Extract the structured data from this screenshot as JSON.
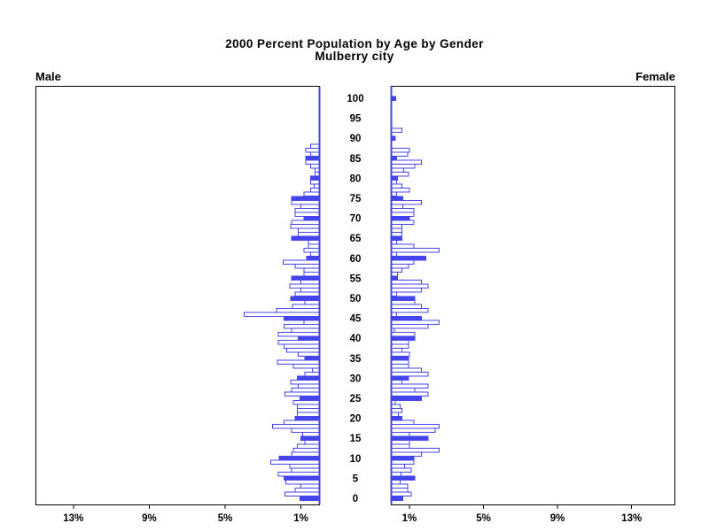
{
  "title": {
    "line1": "2000 Percent Population by Age by Gender",
    "line2": "Mulberry city"
  },
  "chart_data": {
    "type": "bar",
    "subtype": "population-pyramid",
    "title": "2000 Percent Population by Age by Gender",
    "subtitle": "Mulberry city",
    "left_series_label": "Male",
    "right_series_label": "Female",
    "age_axis": {
      "min": 0,
      "max": 100,
      "tick_step": 5,
      "tick_labels": [
        "0",
        "5",
        "10",
        "15",
        "20",
        "25",
        "30",
        "35",
        "40",
        "45",
        "50",
        "55",
        "60",
        "65",
        "70",
        "75",
        "80",
        "85",
        "90",
        "95",
        "100"
      ]
    },
    "pct_axis": {
      "tick_values": [
        1,
        5,
        9,
        13
      ],
      "male_tick_labels": [
        "13%",
        "9%",
        "5%",
        "1%"
      ],
      "female_tick_labels": [
        "1%",
        "5%",
        "9%",
        "13%"
      ]
    },
    "filled_bar_rule": "bars for ages that are multiples of 5 are solid filled; all other single-year bars are white with blue outline",
    "bar_color": "#4444ee",
    "bar_empty_fill": "#ffffff",
    "frame_color": "#000000",
    "series": [
      {
        "name": "Male",
        "side": "left",
        "unit": "percent of population",
        "values": [
          1.05,
          1.85,
          1.3,
          1.0,
          1.8,
          1.9,
          2.2,
          1.5,
          1.6,
          2.6,
          2.15,
          1.5,
          1.4,
          1.2,
          0.8,
          1.0,
          0.9,
          1.5,
          2.5,
          1.9,
          1.3,
          1.2,
          1.2,
          1.2,
          1.4,
          1.05,
          1.85,
          1.5,
          1.15,
          1.55,
          1.2,
          0.8,
          0.4,
          1.4,
          2.25,
          0.8,
          1.15,
          1.75,
          1.9,
          2.2,
          1.15,
          2.2,
          1.5,
          1.9,
          0.85,
          1.9,
          4.0,
          2.3,
          1.45,
          0.8,
          1.55,
          1.3,
          1.0,
          1.6,
          1.0,
          1.5,
          0.85,
          0.85,
          1.3,
          1.95,
          0.7,
          0.5,
          0.85,
          0.6,
          0.6,
          1.5,
          1.15,
          1.15,
          1.55,
          1.5,
          0.85,
          1.3,
          1.3,
          1.0,
          1.5,
          1.5,
          0.85,
          0.5,
          0.3,
          0.5,
          0.5,
          0.25,
          0.25,
          0.5,
          0.75,
          0.75,
          0.5,
          0.75,
          0.5,
          0,
          0,
          0,
          0,
          0,
          0,
          0,
          0,
          0,
          0,
          0,
          0
        ]
      },
      {
        "name": "Female",
        "side": "right",
        "unit": "percent of population",
        "values": [
          0.65,
          1.1,
          0.9,
          0.9,
          0.5,
          1.3,
          0.55,
          1.1,
          0.75,
          1.25,
          1.25,
          1.65,
          2.6,
          1.0,
          1.0,
          2.0,
          1.0,
          2.4,
          2.6,
          1.25,
          0.6,
          0.4,
          0.6,
          0.5,
          0.25,
          1.65,
          2.0,
          1.3,
          2.0,
          0.6,
          0.95,
          2.0,
          1.65,
          0.95,
          0.95,
          0.95,
          1.0,
          0.6,
          0.95,
          0.95,
          1.3,
          1.3,
          0.2,
          2.0,
          2.6,
          1.65,
          0.3,
          2.0,
          1.65,
          1.3,
          1.3,
          0.3,
          1.65,
          2.0,
          1.65,
          0.35,
          0.35,
          0.6,
          0.95,
          1.25,
          1.9,
          0.3,
          2.6,
          1.25,
          0.3,
          0.6,
          0.6,
          0.6,
          0.6,
          1.25,
          1.0,
          1.25,
          1.25,
          0.65,
          1.65,
          0.65,
          0.3,
          1.0,
          0.6,
          0.3,
          0.35,
          0.95,
          0.7,
          1.3,
          1.65,
          0.3,
          0.9,
          1.0,
          0,
          0,
          0.25,
          0,
          0.6,
          0,
          0,
          0,
          0,
          0,
          0,
          0,
          0.27
        ]
      }
    ]
  }
}
